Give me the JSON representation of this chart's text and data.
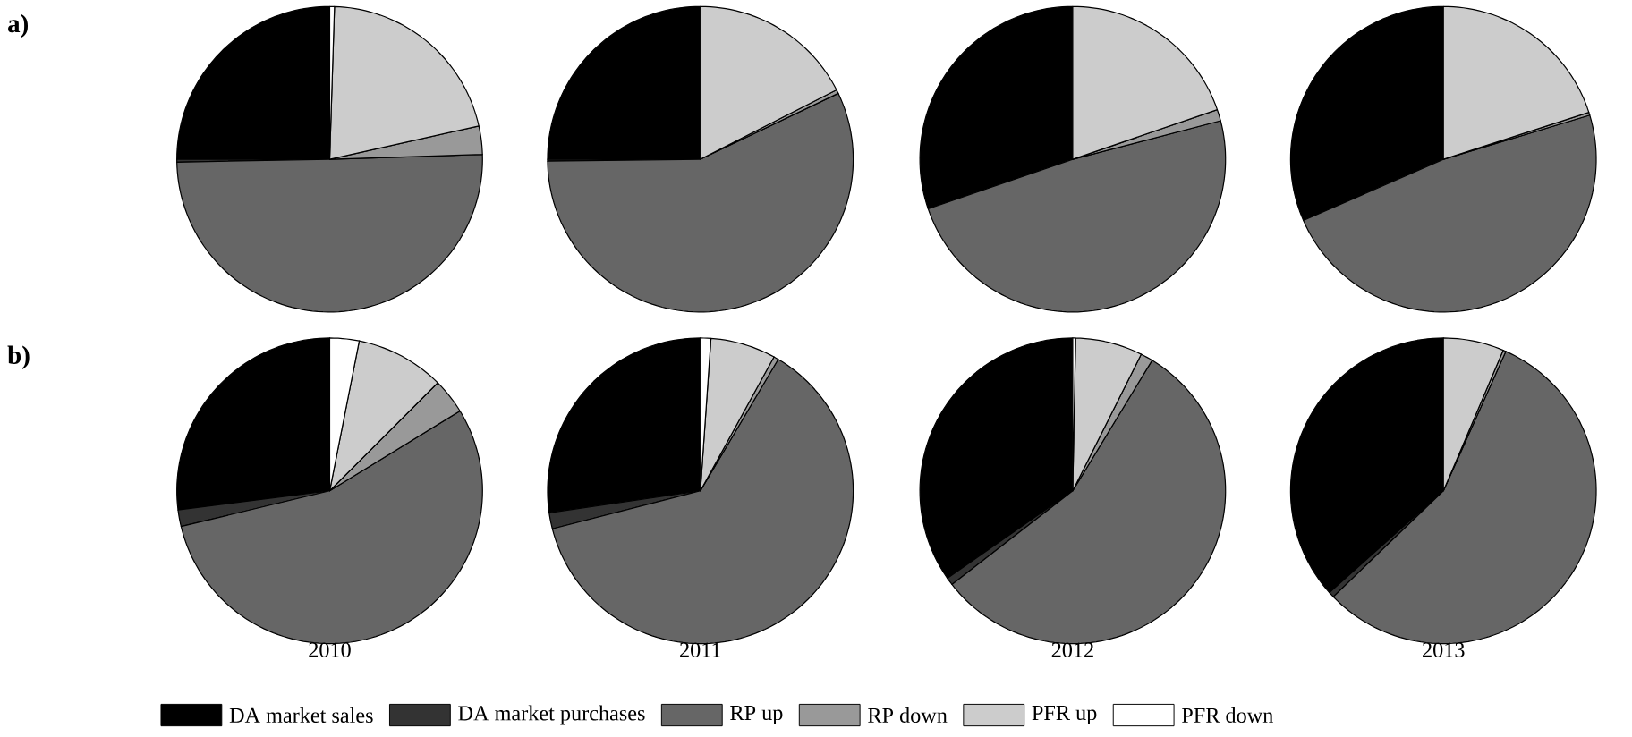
{
  "chart_data": [
    {
      "type": "pie",
      "annotations": [
        "a)"
      ],
      "legend": "bottom",
      "categories": [
        "DA market sales",
        "DA market purchases",
        "RP up",
        "RP down",
        "PFR up",
        "PFR down"
      ],
      "values": [
        25,
        0.3,
        50.2,
        3,
        21,
        0.5
      ],
      "colors": [
        "#000000",
        "#333333",
        "#666666",
        "#999999",
        "#cccccc",
        "#ffffff"
      ]
    },
    {
      "type": "pie",
      "values": [
        25,
        0.2,
        56.9,
        0.4,
        17.5,
        0
      ],
      "colors": [
        "#000000",
        "#333333",
        "#666666",
        "#999999",
        "#cccccc",
        "#ffffff"
      ]
    },
    {
      "type": "pie",
      "values": [
        30.2,
        null,
        48.7,
        1.2,
        19.7,
        0
      ],
      "colors": [
        "#000000",
        "#333333",
        "#666666",
        "#999999",
        "#cccccc",
        "#ffffff"
      ]
    },
    {
      "type": "pie",
      "values": [
        31.5,
        null,
        48,
        0.3,
        20,
        0
      ],
      "colors": [
        "#000000",
        "#333333",
        "#666666",
        "#999999",
        "#cccccc",
        "#ffffff"
      ]
    },
    {
      "type": "pie",
      "title": "2010",
      "annotations": [
        "b)"
      ],
      "values": [
        27,
        1.75,
        55,
        3.75,
        9.4,
        3.1
      ],
      "colors": [
        "#000000",
        "#333333",
        "#666666",
        "#999999",
        "#cccccc",
        "#ffffff"
      ]
    },
    {
      "type": "pie",
      "title": "2011",
      "values": [
        27.3,
        1.7,
        62.5,
        0.5,
        6.9,
        1.1
      ],
      "colors": [
        "#000000",
        "#333333",
        "#666666",
        "#999999",
        "#cccccc",
        "#ffffff"
      ]
    },
    {
      "type": "pie",
      "title": "2012",
      "values": [
        34.7,
        0.8,
        55.8,
        1.3,
        7.1,
        0.3
      ],
      "colors": [
        "#000000",
        "#333333",
        "#666666",
        "#999999",
        "#cccccc",
        "#ffffff"
      ]
    },
    {
      "type": "pie",
      "title": "2013",
      "values": [
        36.6,
        0.6,
        56.1,
        0.3,
        6.4,
        0
      ],
      "colors": [
        "#000000",
        "#333333",
        "#666666",
        "#999999",
        "#cccccc",
        "#ffffff"
      ]
    }
  ]
}
